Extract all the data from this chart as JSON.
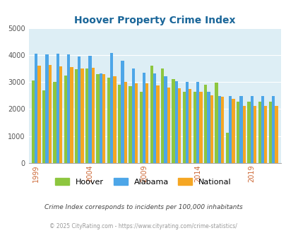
{
  "title": "Hoover Property Crime Index",
  "subtitle": "Crime Index corresponds to incidents per 100,000 inhabitants",
  "footer": "© 2025 CityRating.com - https://www.cityrating.com/crime-statistics/",
  "years": [
    1999,
    2000,
    2001,
    2002,
    2003,
    2004,
    2005,
    2006,
    2007,
    2008,
    2009,
    2010,
    2011,
    2012,
    2013,
    2014,
    2015,
    2016,
    2017,
    2018,
    2019,
    2020,
    2021
  ],
  "hoover": [
    3050,
    2700,
    3000,
    3230,
    3480,
    3490,
    3280,
    3170,
    2900,
    2860,
    2650,
    3600,
    3500,
    3110,
    2650,
    2650,
    2900,
    2980,
    1130,
    2260,
    2260,
    2260,
    2260
  ],
  "alabama": [
    4060,
    4020,
    4040,
    4010,
    3940,
    3980,
    3310,
    4080,
    3780,
    3510,
    3350,
    3330,
    3210,
    3020,
    3000,
    3000,
    2650,
    2480,
    2480,
    2480,
    2480,
    2480,
    2480
  ],
  "national": [
    3600,
    3620,
    3580,
    3540,
    3510,
    3520,
    3280,
    3210,
    3000,
    2960,
    2940,
    2870,
    2800,
    2760,
    2750,
    2650,
    2500,
    2460,
    2380,
    2120,
    2120,
    2120,
    2120
  ],
  "hoover_color": "#8dc63f",
  "alabama_color": "#4da6e8",
  "national_color": "#f5a623",
  "bg_color": "#ddeef5",
  "ylim": [
    0,
    5000
  ],
  "yticks": [
    0,
    1000,
    2000,
    3000,
    4000,
    5000
  ],
  "xtick_years": [
    1999,
    2004,
    2009,
    2014,
    2019
  ],
  "title_color": "#1a6699",
  "subtitle_color": "#444444",
  "footer_color": "#999999",
  "bar_width": 0.28
}
